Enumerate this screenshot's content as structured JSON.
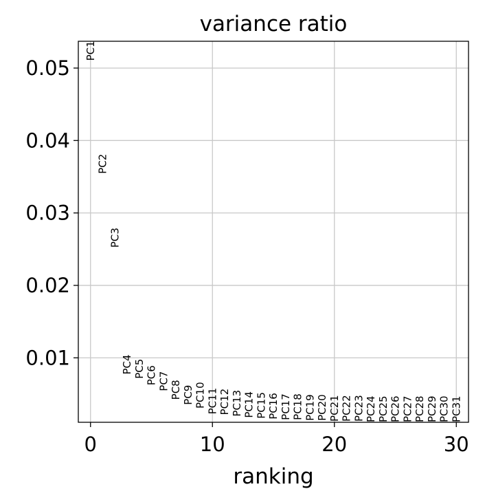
{
  "chart_data": {
    "type": "scatter",
    "title": "variance ratio",
    "xlabel": "ranking",
    "ylabel": "",
    "xlim": [
      -1,
      31
    ],
    "ylim": [
      0.0011,
      0.0537
    ],
    "xticks": [
      0,
      10,
      20,
      30
    ],
    "xtick_labels": [
      "0",
      "10",
      "20",
      "30"
    ],
    "yticks": [
      0.01,
      0.02,
      0.03,
      0.04,
      0.05
    ],
    "ytick_labels": [
      "0.01",
      "0.02",
      "0.03",
      "0.04",
      "0.05"
    ],
    "grid": true,
    "points": [
      {
        "label": "PC1",
        "x": 0,
        "y": 0.051
      },
      {
        "label": "PC2",
        "x": 1,
        "y": 0.0354
      },
      {
        "label": "PC3",
        "x": 2,
        "y": 0.0252
      },
      {
        "label": "PC4",
        "x": 3,
        "y": 0.0077
      },
      {
        "label": "PC5",
        "x": 4,
        "y": 0.0071
      },
      {
        "label": "PC6",
        "x": 5,
        "y": 0.0062
      },
      {
        "label": "PC7",
        "x": 6,
        "y": 0.0054
      },
      {
        "label": "PC8",
        "x": 7,
        "y": 0.0042
      },
      {
        "label": "PC9",
        "x": 8,
        "y": 0.0035
      },
      {
        "label": "PC10",
        "x": 9,
        "y": 0.003
      },
      {
        "label": "PC11",
        "x": 10,
        "y": 0.0022
      },
      {
        "label": "PC12",
        "x": 11,
        "y": 0.0021
      },
      {
        "label": "PC13",
        "x": 12,
        "y": 0.0019
      },
      {
        "label": "PC14",
        "x": 13,
        "y": 0.0017
      },
      {
        "label": "PC15",
        "x": 14,
        "y": 0.0016
      },
      {
        "label": "PC16",
        "x": 15,
        "y": 0.0015
      },
      {
        "label": "PC17",
        "x": 16,
        "y": 0.0014
      },
      {
        "label": "PC18",
        "x": 17,
        "y": 0.0014
      },
      {
        "label": "PC19",
        "x": 18,
        "y": 0.0013
      },
      {
        "label": "PC20",
        "x": 19,
        "y": 0.0013
      },
      {
        "label": "PC21",
        "x": 20,
        "y": 0.0012
      },
      {
        "label": "PC22",
        "x": 21,
        "y": 0.0012
      },
      {
        "label": "PC23",
        "x": 22,
        "y": 0.0012
      },
      {
        "label": "PC24",
        "x": 23,
        "y": 0.0011
      },
      {
        "label": "PC25",
        "x": 24,
        "y": 0.0011
      },
      {
        "label": "PC26",
        "x": 25,
        "y": 0.0011
      },
      {
        "label": "PC27",
        "x": 26,
        "y": 0.0011
      },
      {
        "label": "PC28",
        "x": 27,
        "y": 0.0011
      },
      {
        "label": "PC29",
        "x": 28,
        "y": 0.0011
      },
      {
        "label": "PC30",
        "x": 29,
        "y": 0.0011
      },
      {
        "label": "PC31",
        "x": 30,
        "y": 0.0011
      }
    ]
  }
}
